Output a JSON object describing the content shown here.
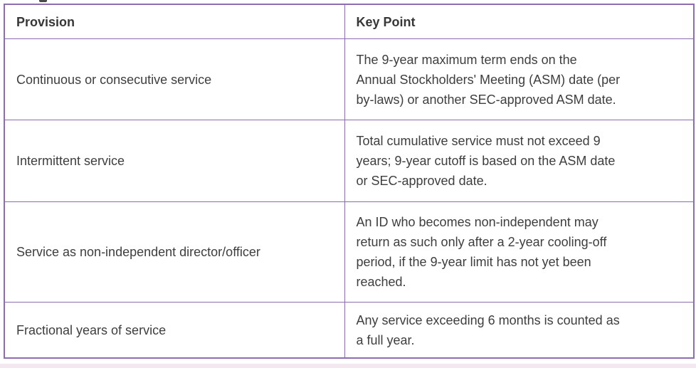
{
  "colors": {
    "table_border": "#8c6db0",
    "body_text": "#3e3e3e",
    "header_text": "#373737",
    "background": "#ffffff",
    "bottom_strip": "#f4e7ef"
  },
  "table": {
    "columns": [
      {
        "label": "Provision"
      },
      {
        "label": "Key Point"
      }
    ],
    "rows": [
      {
        "provision": "Continuous or consecutive service",
        "key_point": "The 9-year maximum term ends on the\nAnnual Stockholders' Meeting (ASM) date (per\nby-laws) or another SEC-approved ASM date."
      },
      {
        "provision": "Intermittent service",
        "key_point": "Total cumulative service must not exceed 9\nyears; 9-year cutoff is based on the ASM date\nor SEC-approved date."
      },
      {
        "provision": "Service as non-independent director/officer",
        "key_point": "An ID who becomes non-independent may\nreturn as such only after a 2-year cooling-off\nperiod, if the 9-year limit has not yet been\nreached."
      },
      {
        "provision": "Fractional years of service",
        "key_point": "Any service exceeding 6 months is counted as\na full year."
      }
    ]
  }
}
